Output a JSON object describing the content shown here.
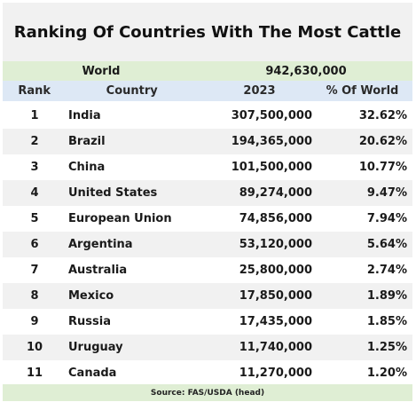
{
  "title": "Ranking Of Countries With The Most Cattle",
  "world": {
    "label": "World",
    "value": "942,630,000"
  },
  "headers": {
    "rank": "Rank",
    "country": "Country",
    "year": "2023",
    "pct": "% Of World"
  },
  "rows": [
    {
      "rank": "1",
      "country": "India",
      "value": "307,500,000",
      "pct": "32.62%"
    },
    {
      "rank": "2",
      "country": "Brazil",
      "value": "194,365,000",
      "pct": "20.62%"
    },
    {
      "rank": "3",
      "country": "China",
      "value": "101,500,000",
      "pct": "10.77%"
    },
    {
      "rank": "4",
      "country": "United States",
      "value": "89,274,000",
      "pct": "9.47%"
    },
    {
      "rank": "5",
      "country": "European Union",
      "value": "74,856,000",
      "pct": "7.94%"
    },
    {
      "rank": "6",
      "country": "Argentina",
      "value": "53,120,000",
      "pct": "5.64%"
    },
    {
      "rank": "7",
      "country": "Australia",
      "value": "25,800,000",
      "pct": "2.74%"
    },
    {
      "rank": "8",
      "country": "Mexico",
      "value": "17,850,000",
      "pct": "1.89%"
    },
    {
      "rank": "9",
      "country": "Russia",
      "value": "17,435,000",
      "pct": "1.85%"
    },
    {
      "rank": "10",
      "country": "Uruguay",
      "value": "11,740,000",
      "pct": "1.25%"
    },
    {
      "rank": "11",
      "country": "Canada",
      "value": "11,270,000",
      "pct": "1.20%"
    }
  ],
  "source": "Source: FAS/USDA (head)",
  "colors": {
    "title_bg": "#f1f1f1",
    "world_bg": "#dfeed4",
    "header_bg": "#dde8f5",
    "alt_row_bg": "#f1f1f1"
  }
}
